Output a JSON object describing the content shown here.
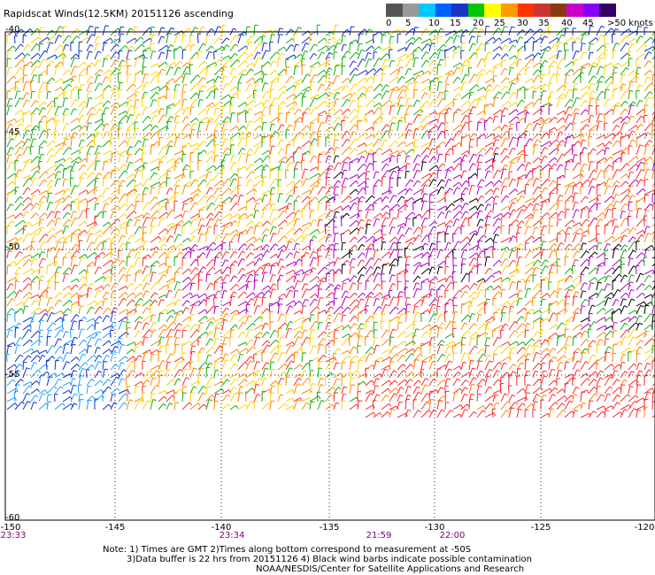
{
  "title": "Rapidscat Winds(12.5KM) 20151126 ascending",
  "color_scale": {
    "labels": [
      "0",
      "5",
      "10",
      "15",
      "20",
      "25",
      "30",
      "35",
      "40",
      "45",
      ">50 knots"
    ],
    "colors": [
      "#555555",
      "#9a9a9a",
      "#00c8ff",
      "#0060ff",
      "#1c35c8",
      "#00c800",
      "#ffff00",
      "#ff9900",
      "#ff3300",
      "#cc3333",
      "#8a3a10",
      "#cc00cc",
      "#8800ff",
      "#330066"
    ]
  },
  "axes": {
    "lat_labels": [
      "-40",
      "-45",
      "-50",
      "-55",
      "-60"
    ],
    "lon_labels": [
      "-150",
      "-145",
      "-140",
      "-135",
      "-130",
      "-125",
      "-120"
    ]
  },
  "times": [
    "23:33",
    "23:34",
    "21:59",
    "22:00"
  ],
  "notes": [
    "Note: 1) Times are GMT 2)Times along bottom correspond to measurement at -50S",
    "3)Data buffer is 22 hrs from 20151126 4) Black wind barbs indicate possible contamination",
    "NOAA/NESDIS/Center for Satellite Applications and Research"
  ],
  "map_colors": {
    "grid": "#333333",
    "blue": "#1030d0",
    "cyan": "#20a0ff",
    "green": "#10b010",
    "yellow": "#ffd000",
    "orange": "#ff8800",
    "red": "#ff2a2a",
    "purple": "#b000c0",
    "black": "#000000"
  }
}
